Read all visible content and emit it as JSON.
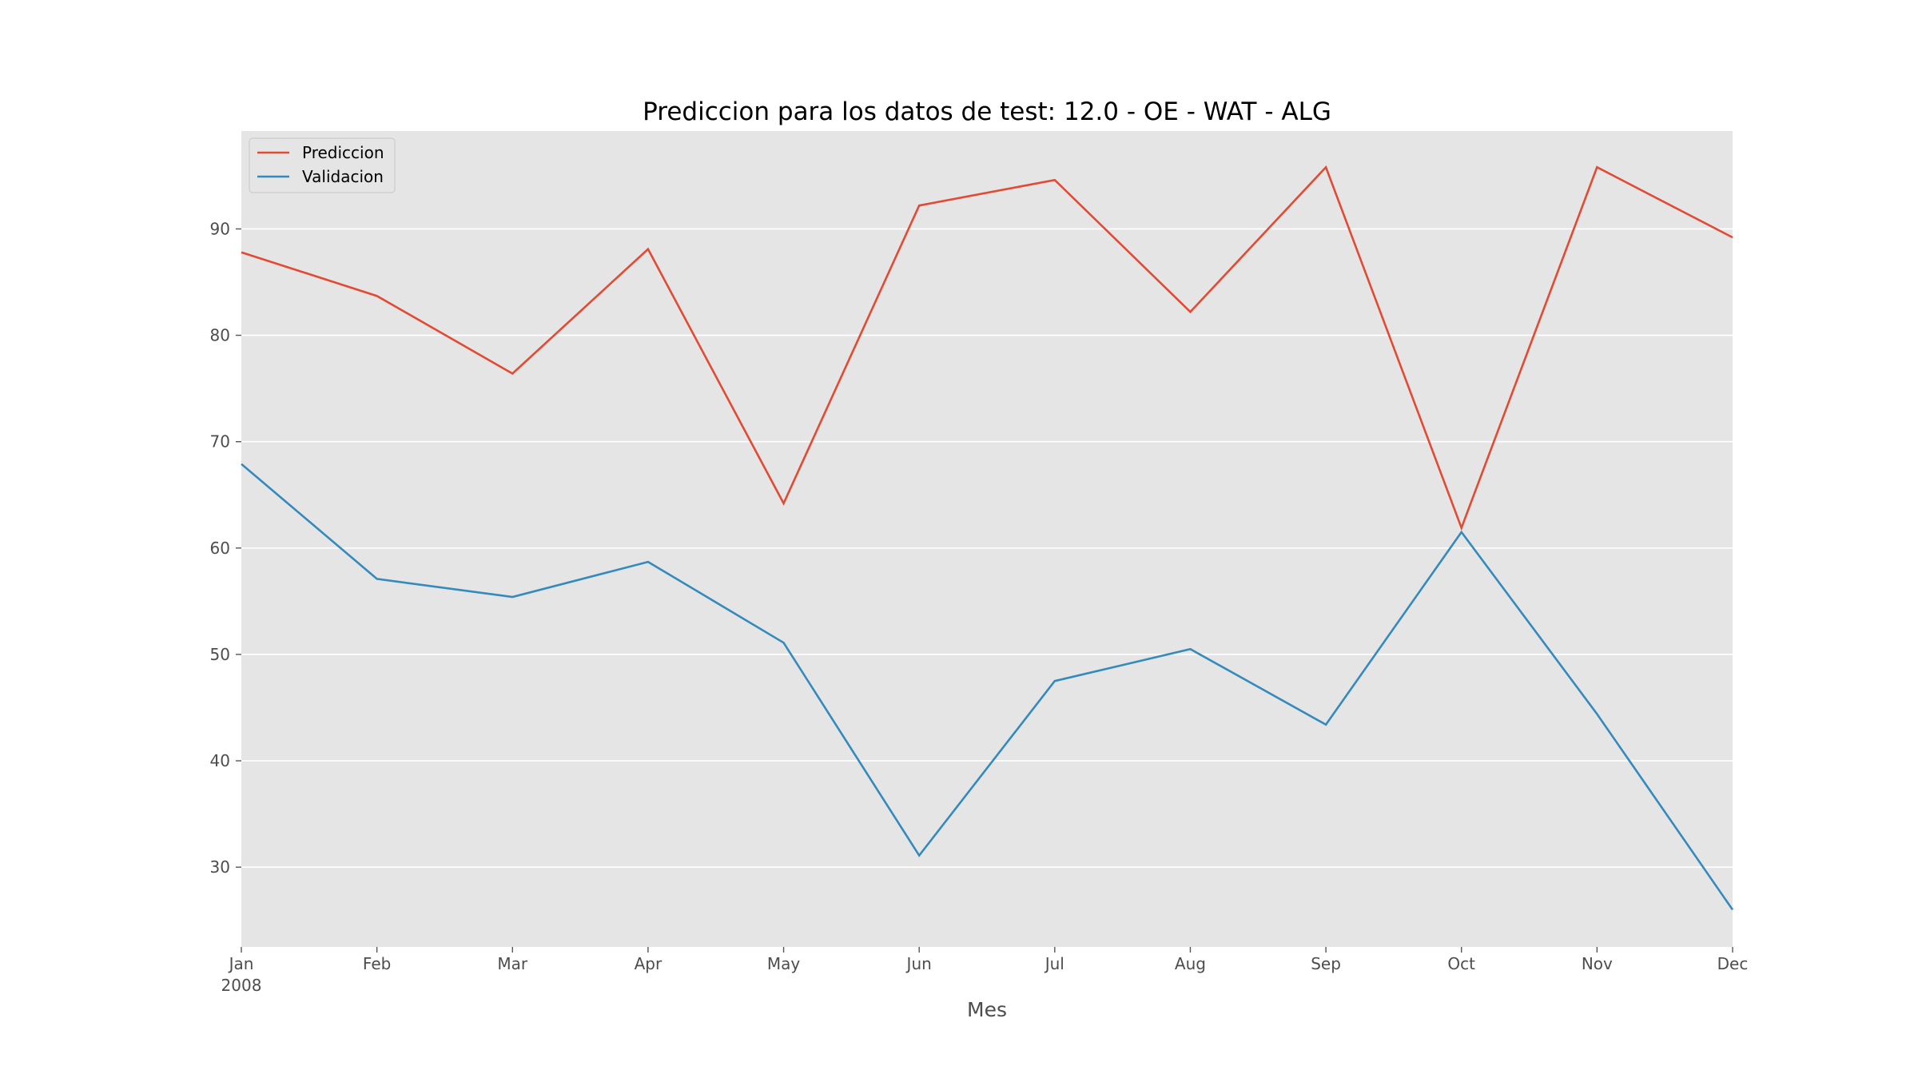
{
  "chart_data": {
    "type": "line",
    "title": "Prediccion para los datos de test: 12.0 - OE - WAT - ALG",
    "xlabel": "Mes",
    "ylabel": "",
    "categories": [
      "Jan",
      "Feb",
      "Mar",
      "Apr",
      "May",
      "Jun",
      "Jul",
      "Aug",
      "Sep",
      "Oct",
      "Nov",
      "Dec"
    ],
    "x_year_label": "2008",
    "yticks": [
      30,
      40,
      50,
      60,
      70,
      80,
      90
    ],
    "ylim": [
      22.5,
      99.2
    ],
    "grid": true,
    "legend_position": "upper-left",
    "background": "#e5e5e5",
    "series": [
      {
        "name": "Prediccion",
        "color": "#e24a33",
        "values": [
          87.8,
          83.7,
          76.4,
          88.1,
          64.2,
          92.2,
          94.6,
          82.2,
          95.8,
          61.9,
          95.8,
          89.2
        ]
      },
      {
        "name": "Validacion",
        "color": "#348abd",
        "values": [
          67.9,
          57.1,
          55.4,
          58.7,
          51.1,
          31.1,
          47.5,
          50.5,
          43.4,
          61.5,
          44.4,
          26.0
        ]
      }
    ]
  }
}
